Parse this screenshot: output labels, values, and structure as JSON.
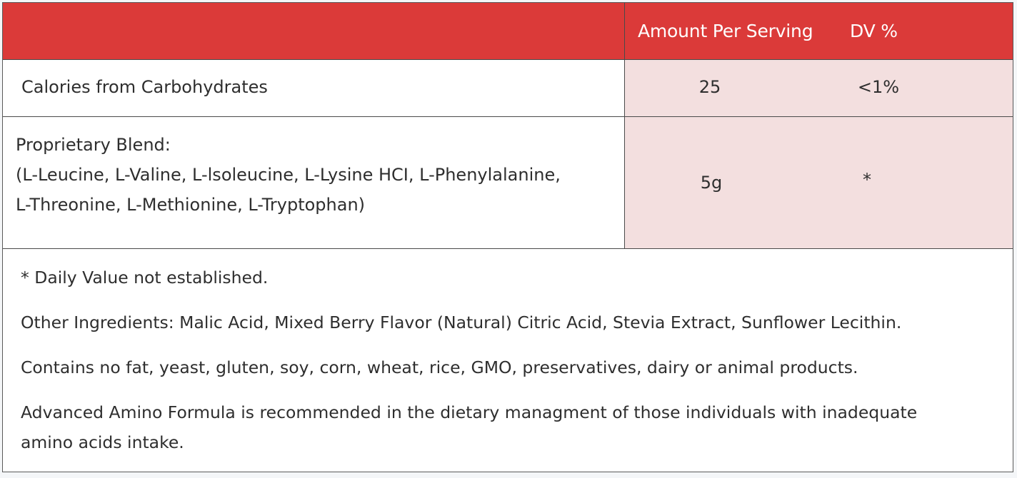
{
  "table": {
    "header": {
      "amount_label": "Amount Per Serving",
      "dv_label": "DV %"
    },
    "rows": [
      {
        "name": "Calories from Carbohydrates",
        "amount": "25",
        "dv": "<1%"
      },
      {
        "name_lines": [
          "Proprietary Blend:",
          "(L-Leucine, L-Valine, L-lsoleucine, L-Lysine HCI, L-Phenylalanine,",
          "L-Threonine, L-Methionine, L-Tryptophan)"
        ],
        "amount": "5g",
        "dv": "*"
      }
    ]
  },
  "notes": {
    "daily_value": "* Daily Value not established.",
    "other_ingredients": "Other Ingredients: Malic Acid, Mixed Berry Flavor (Natural) Citric Acid, Stevia Extract, Sunflower Lecithin.",
    "contains": "Contains no fat, yeast, gluten, soy, corn, wheat, rice, GMO, preservatives, dairy or animal products.",
    "recommendation_lines": [
      "Advanced Amino Formula is recommended in the dietary managment of those individuals with inadequate",
      "amino acids intake."
    ]
  },
  "colors": {
    "header_bg": "#db3a39",
    "value_cell_bg": "#f3dfdf",
    "border": "#4a4a4a"
  }
}
